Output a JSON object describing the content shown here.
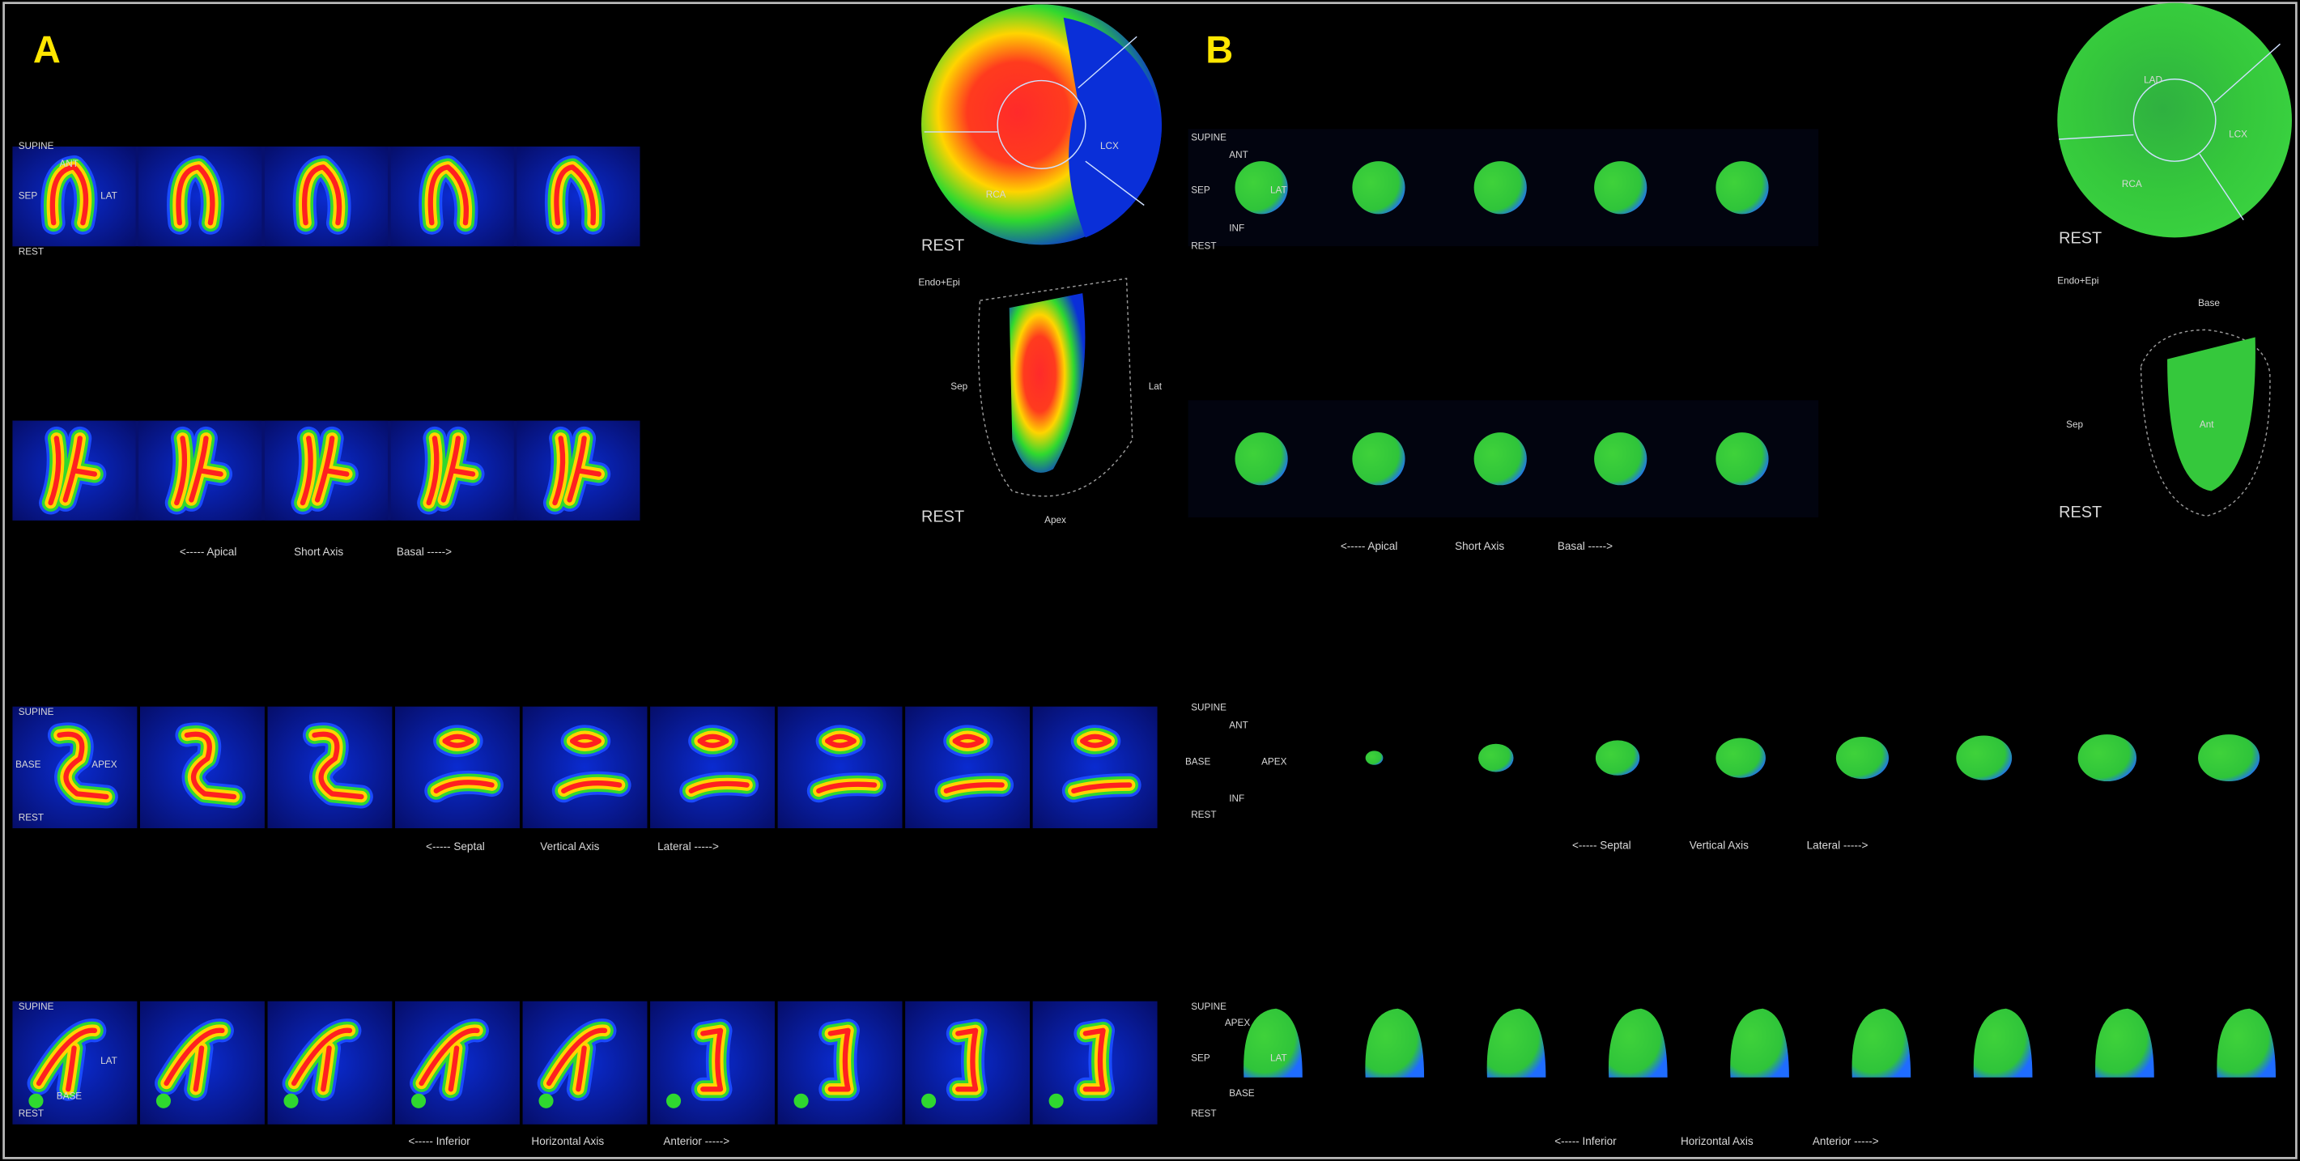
{
  "panels": [
    {
      "letter": "A",
      "short_axis": {
        "orientation": [
          "SUPINE",
          "ANT",
          "SEP",
          "LAT",
          "REST"
        ],
        "caption": [
          "<----- Apical",
          "Short Axis",
          "Basal ----->"
        ]
      },
      "vertical_axis": {
        "orientation": [
          "SUPINE",
          "BASE",
          "APEX",
          "REST"
        ],
        "caption": [
          "<----- Septal",
          "Vertical Axis",
          "Lateral ----->"
        ]
      },
      "horizontal_axis": {
        "orientation": [
          "SUPINE",
          "LAT",
          "BASE",
          "REST"
        ],
        "caption": [
          "<----- Inferior",
          "Horizontal Axis",
          "Anterior ----->"
        ]
      },
      "polar_map": {
        "territories": [
          "LCX",
          "RCA"
        ],
        "caption": "REST"
      },
      "surface_model": {
        "labels": [
          "Endo+Epi",
          "Sep",
          "Lat",
          "Apex"
        ],
        "caption": "REST"
      }
    },
    {
      "letter": "B",
      "short_axis": {
        "orientation": [
          "SUPINE",
          "ANT",
          "SEP",
          "LAT",
          "INF",
          "REST"
        ],
        "caption": [
          "<----- Apical",
          "Short Axis",
          "Basal ----->"
        ]
      },
      "vertical_axis": {
        "orientation": [
          "SUPINE",
          "ANT",
          "BASE",
          "APEX",
          "INF",
          "REST"
        ],
        "caption": [
          "<----- Septal",
          "Vertical Axis",
          "Lateral ----->"
        ]
      },
      "horizontal_axis": {
        "orientation": [
          "SUPINE",
          "APEX",
          "SEP",
          "LAT",
          "BASE",
          "REST"
        ],
        "caption": [
          "<----- Inferior",
          "Horizontal Axis",
          "Anterior ----->"
        ]
      },
      "polar_map": {
        "territories": [
          "LAD",
          "LCX",
          "RCA"
        ],
        "caption": "REST"
      },
      "surface_model": {
        "labels": [
          "Endo+Epi",
          "Base",
          "Sep",
          "Ant"
        ],
        "caption": "REST"
      }
    }
  ]
}
